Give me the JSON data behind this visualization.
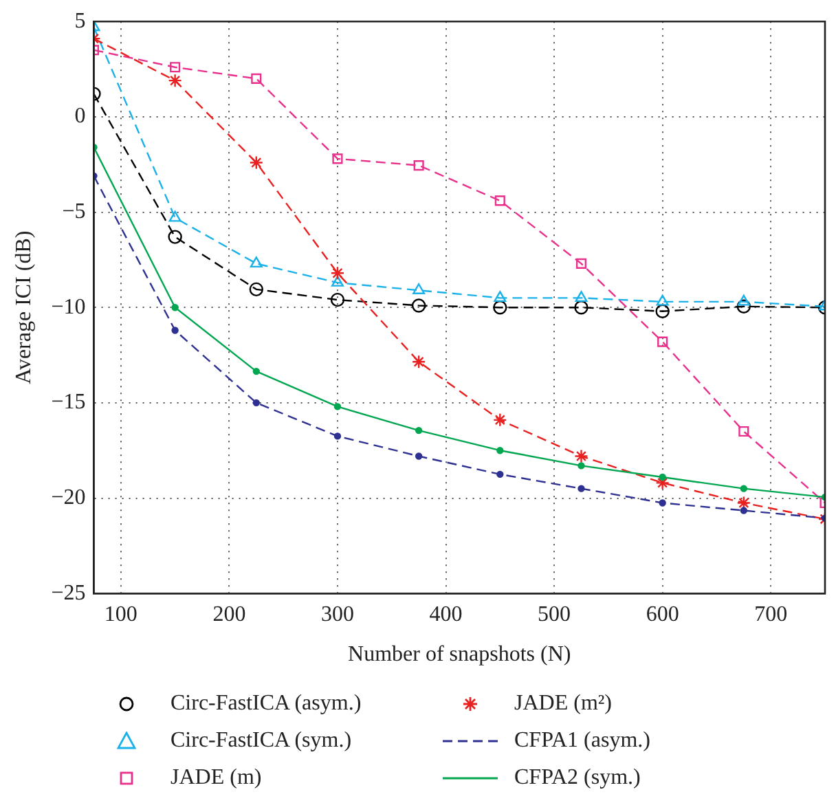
{
  "chart_data": {
    "type": "line",
    "xlabel": "Number of snapshots (N)",
    "ylabel": "Average ICI (dB)",
    "x": [
      75,
      150,
      225,
      300,
      375,
      450,
      525,
      600,
      675,
      750
    ],
    "xlim": [
      75,
      750
    ],
    "xticks": [
      100,
      200,
      300,
      400,
      500,
      600,
      700
    ],
    "ylim": [
      -25,
      5
    ],
    "yticks": [
      -25,
      -20,
      -15,
      -10,
      -5,
      0,
      5
    ],
    "grid": true,
    "legend": "bottom",
    "series": [
      {
        "name": "Circ-FastICA (asym.)",
        "color": "#000000",
        "marker": "circle",
        "line_style": "dashed",
        "values": [
          1.2,
          -6.3,
          -9.05,
          -9.6,
          -9.9,
          -10.0,
          -10.0,
          -10.2,
          -9.95,
          -10.0
        ]
      },
      {
        "name": "Circ-FastICA (sym.)",
        "color": "#1ab0e8",
        "marker": "triangle",
        "line_style": "dashed",
        "values": [
          4.7,
          -5.3,
          -7.7,
          -8.7,
          -9.1,
          -9.5,
          -9.5,
          -9.7,
          -9.7,
          -9.95
        ]
      },
      {
        "name": "JADE (m)",
        "color": "#e8308c",
        "marker": "square",
        "line_style": "dashed",
        "values": [
          3.5,
          2.6,
          2.0,
          -2.2,
          -2.55,
          -4.4,
          -7.7,
          -11.8,
          -16.5,
          -20.25
        ]
      },
      {
        "name": "JADE (m²)",
        "color": "#e82020",
        "marker": "cross",
        "line_style": "dashed",
        "values": [
          4.1,
          1.9,
          -2.4,
          -8.2,
          -12.85,
          -15.9,
          -17.8,
          -19.2,
          -20.25,
          -21.1
        ]
      },
      {
        "name": "CFPA1 (asym.)",
        "color": "#2e3192",
        "marker": "circle",
        "line_style": "dashed",
        "values": [
          -3.1,
          -11.2,
          -15.0,
          -16.75,
          -17.8,
          -18.75,
          -19.5,
          -20.25,
          -20.65,
          -21.05
        ]
      },
      {
        "name": "CFPA2 (sym.)",
        "color": "#00a650",
        "marker": "circle",
        "line_style": "solid",
        "values": [
          -1.6,
          -10.0,
          -13.35,
          -15.2,
          -16.45,
          -17.5,
          -18.3,
          -18.9,
          -19.5,
          -19.95
        ]
      }
    ]
  }
}
